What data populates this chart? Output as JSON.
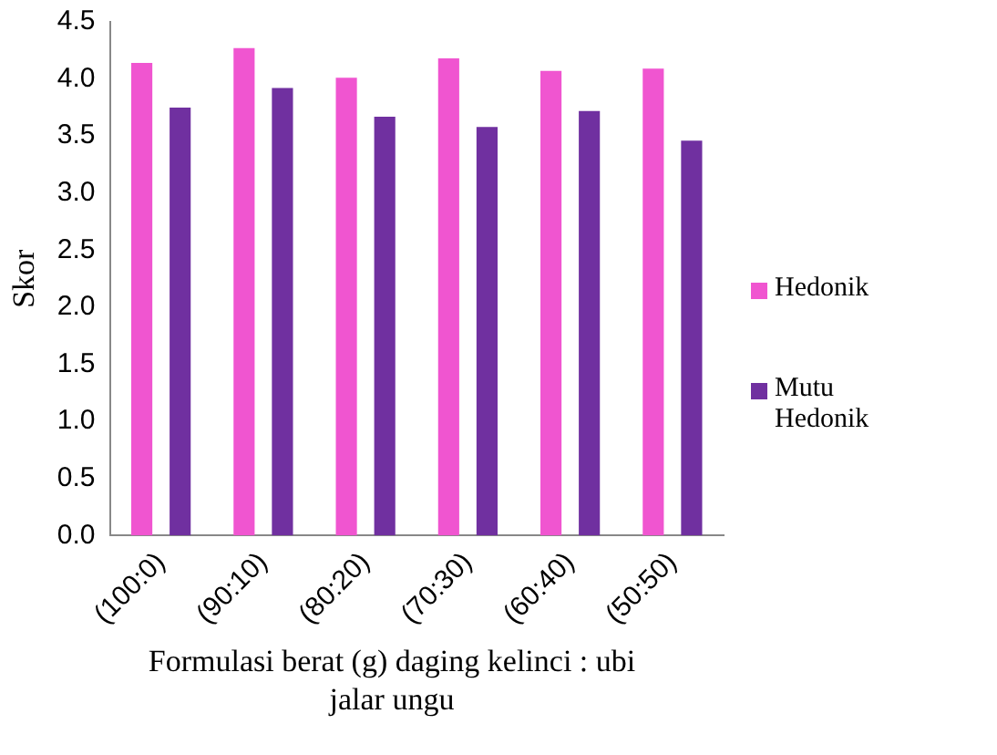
{
  "chart_data": {
    "type": "bar",
    "xlabel": "Formulasi berat (g) daging kelinci : ubi jalar ungu",
    "ylabel": "Skor",
    "categories": [
      "(100:0)",
      "(90:10)",
      "(80:20)",
      "(70:30)",
      "(60:40)",
      "(50:50)"
    ],
    "series": [
      {
        "name": "Hedonik",
        "color": "#f055d0",
        "values": [
          4.14,
          4.27,
          4.01,
          4.18,
          4.07,
          4.09
        ]
      },
      {
        "name": "Mutu Hedonik",
        "color": "#7030a0",
        "values": [
          3.75,
          3.92,
          3.67,
          3.58,
          3.72,
          3.46
        ]
      }
    ],
    "ylim": [
      0,
      4.5
    ],
    "yticks": [
      {
        "value": 0,
        "label": "0.0"
      },
      0.5,
      {
        "value": 1,
        "label": "1.0"
      },
      1.5,
      {
        "value": 2,
        "label": "2.0"
      },
      2.5,
      {
        "value": 3,
        "label": "3.0"
      },
      3.5,
      {
        "value": 4,
        "label": "4.0"
      },
      4.5
    ],
    "grid": false,
    "legend": "right"
  }
}
